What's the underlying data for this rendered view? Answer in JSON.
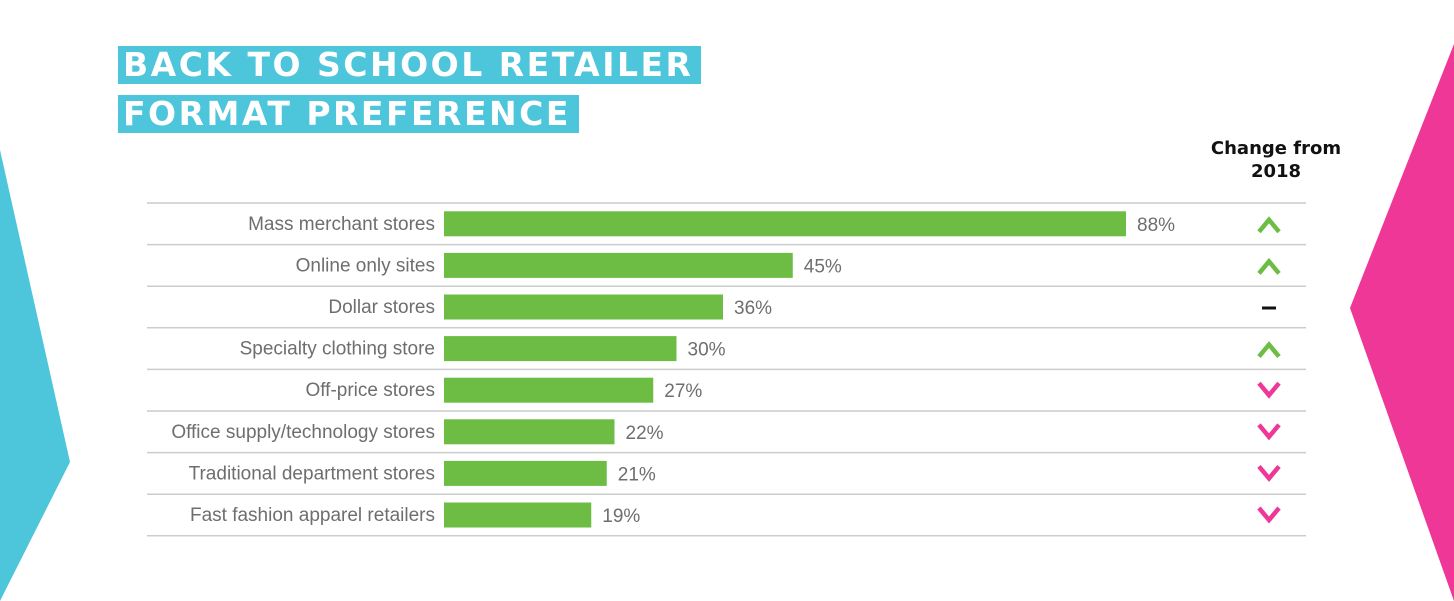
{
  "title_lines": [
    "BACK TO SCHOOL RETAILER",
    "FORMAT PREFERENCE"
  ],
  "change_header": [
    "Change from",
    "2018"
  ],
  "colors": {
    "bar": "#6dbd45",
    "accent_cyan": "#4dc5db",
    "accent_pink": "#ee3797",
    "up": "#6dbd45",
    "down": "#ee3797",
    "flat": "#111111",
    "divider": "#cccccc"
  },
  "chart_data": {
    "type": "bar",
    "orientation": "horizontal",
    "categories": [
      "Mass merchant stores",
      "Online only sites",
      "Dollar stores",
      "Specialty clothing store",
      "Off-price stores",
      "Office supply/technology stores",
      "Traditional department stores",
      "Fast fashion apparel retailers"
    ],
    "values": [
      88,
      45,
      36,
      30,
      27,
      22,
      21,
      19
    ],
    "value_labels": [
      "88%",
      "45%",
      "36%",
      "30%",
      "27%",
      "22%",
      "21%",
      "19%"
    ],
    "change_from_2018": [
      "up",
      "up",
      "flat",
      "up",
      "down",
      "down",
      "down",
      "down"
    ],
    "xlim": [
      0,
      100
    ],
    "unit": "%",
    "grid": false,
    "legend": "none"
  }
}
